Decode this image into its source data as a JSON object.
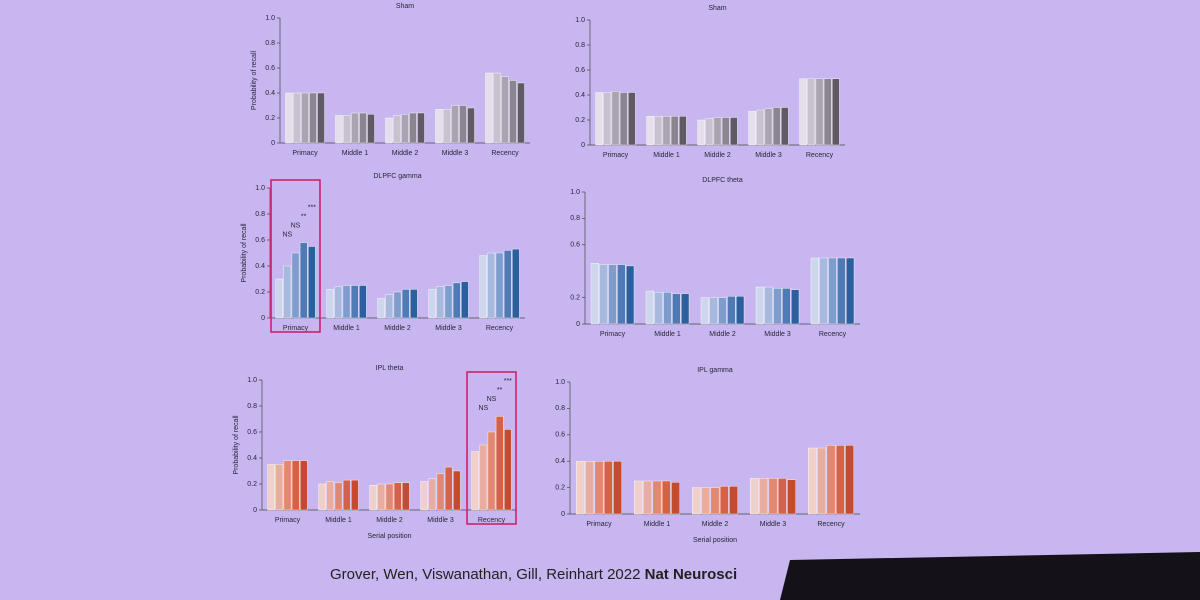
{
  "chart_data": [
    {
      "type": "bar",
      "title": "Sham",
      "ylabel": "Probability of recall",
      "categories": [
        "Primacy",
        "Middle 1",
        "Middle 2",
        "Middle 3",
        "Recency"
      ],
      "series": [
        {
          "color": "#e4dfea",
          "values": [
            0.4,
            0.22,
            0.2,
            0.27,
            0.56
          ]
        },
        {
          "color": "#c8c2ce",
          "values": [
            0.4,
            0.22,
            0.22,
            0.27,
            0.56
          ]
        },
        {
          "color": "#aaa4b1",
          "values": [
            0.4,
            0.24,
            0.23,
            0.3,
            0.53
          ]
        },
        {
          "color": "#8a8591",
          "values": [
            0.4,
            0.24,
            0.24,
            0.3,
            0.5
          ]
        },
        {
          "color": "#5f5a64",
          "values": [
            0.4,
            0.23,
            0.24,
            0.28,
            0.48
          ]
        }
      ],
      "ylim": [
        0,
        1
      ],
      "yticks": [
        0,
        0.2,
        0.4,
        0.6,
        0.8,
        {
          "value": 1,
          "label": "1.0"
        }
      ]
    },
    {
      "type": "bar",
      "title": "Sham",
      "categories": [
        "Primacy",
        "Middle 1",
        "Middle 2",
        "Middle 3",
        "Recency"
      ],
      "series": [
        {
          "color": "#e4dfea",
          "values": [
            0.42,
            0.23,
            0.2,
            0.27,
            0.53
          ]
        },
        {
          "color": "#c8c2ce",
          "values": [
            0.42,
            0.23,
            0.21,
            0.28,
            0.53
          ]
        },
        {
          "color": "#aaa4b1",
          "values": [
            0.43,
            0.23,
            0.22,
            0.29,
            0.53
          ]
        },
        {
          "color": "#8a8591",
          "values": [
            0.42,
            0.23,
            0.22,
            0.3,
            0.53
          ]
        },
        {
          "color": "#5f5a64",
          "values": [
            0.42,
            0.23,
            0.22,
            0.3,
            0.53
          ]
        }
      ],
      "ylim": [
        0,
        1
      ],
      "yticks": [
        0,
        0.2,
        0.4,
        0.6,
        0.8,
        {
          "value": 1,
          "label": "1.0"
        }
      ]
    },
    {
      "type": "bar",
      "title": "DLPFC gamma",
      "ylabel": "Probability of recall",
      "categories": [
        "Primacy",
        "Middle 1",
        "Middle 2",
        "Middle 3",
        "Recency"
      ],
      "series": [
        {
          "color": "#cdd6ec",
          "values": [
            0.3,
            0.22,
            0.15,
            0.22,
            0.48
          ]
        },
        {
          "color": "#a7badd",
          "values": [
            0.4,
            0.24,
            0.18,
            0.24,
            0.5
          ]
        },
        {
          "color": "#7e9dcd",
          "values": [
            0.5,
            0.25,
            0.2,
            0.25,
            0.5
          ]
        },
        {
          "color": "#507ab5",
          "values": [
            0.58,
            0.25,
            0.22,
            0.27,
            0.52
          ]
        },
        {
          "color": "#2b5f9d",
          "values": [
            0.55,
            0.25,
            0.22,
            0.28,
            0.53
          ]
        }
      ],
      "ylim": [
        0,
        1
      ],
      "yticks": [
        0,
        0.2,
        0.4,
        0.6,
        0.8,
        {
          "value": 1,
          "label": "1.0"
        }
      ],
      "highlight_category": 0,
      "annotations": [
        "NS",
        "NS",
        "**",
        "***"
      ]
    },
    {
      "type": "bar",
      "title": "DLPFC theta",
      "categories": [
        "Primacy",
        "Middle 1",
        "Middle 2",
        "Middle 3",
        "Recency"
      ],
      "series": [
        {
          "color": "#cdd6ec",
          "values": [
            0.46,
            0.25,
            0.2,
            0.28,
            0.5
          ]
        },
        {
          "color": "#a7badd",
          "values": [
            0.45,
            0.24,
            0.2,
            0.28,
            0.5
          ]
        },
        {
          "color": "#7e9dcd",
          "values": [
            0.45,
            0.24,
            0.2,
            0.27,
            0.5
          ]
        },
        {
          "color": "#507ab5",
          "values": [
            0.45,
            0.23,
            0.21,
            0.27,
            0.5
          ]
        },
        {
          "color": "#2b5f9d",
          "values": [
            0.44,
            0.23,
            0.21,
            0.26,
            0.5
          ]
        }
      ],
      "ylim": [
        0,
        1
      ],
      "yticks": [
        0,
        0.2,
        0.6,
        0.8,
        {
          "value": 1,
          "label": "1.0"
        }
      ]
    },
    {
      "type": "bar",
      "title": "IPL theta",
      "ylabel": "Probability of recall",
      "xlabel": "Serial position",
      "categories": [
        "Primacy",
        "Middle 1",
        "Middle 2",
        "Middle 3",
        "Recency"
      ],
      "series": [
        {
          "color": "#efd0ca",
          "values": [
            0.35,
            0.2,
            0.19,
            0.22,
            0.45
          ]
        },
        {
          "color": "#e9ad9f",
          "values": [
            0.35,
            0.22,
            0.2,
            0.24,
            0.5
          ]
        },
        {
          "color": "#e28771",
          "values": [
            0.38,
            0.21,
            0.2,
            0.28,
            0.6
          ]
        },
        {
          "color": "#d66147",
          "values": [
            0.38,
            0.23,
            0.21,
            0.33,
            0.72
          ]
        },
        {
          "color": "#c54b30",
          "values": [
            0.38,
            0.23,
            0.21,
            0.3,
            0.62
          ]
        }
      ],
      "ylim": [
        0,
        1
      ],
      "yticks": [
        0,
        0.2,
        0.4,
        0.6,
        0.8,
        {
          "value": 1,
          "label": "1.0"
        }
      ],
      "highlight_category": 4,
      "annotations": [
        "NS",
        "NS",
        "**",
        "***"
      ]
    },
    {
      "type": "bar",
      "title": "IPL gamma",
      "xlabel": "Serial position",
      "categories": [
        "Primacy",
        "Middle 1",
        "Middle 2",
        "Middle 3",
        "Recency"
      ],
      "series": [
        {
          "color": "#efd0ca",
          "values": [
            0.4,
            0.25,
            0.2,
            0.27,
            0.5
          ]
        },
        {
          "color": "#e9ad9f",
          "values": [
            0.4,
            0.25,
            0.2,
            0.27,
            0.5
          ]
        },
        {
          "color": "#e28771",
          "values": [
            0.4,
            0.25,
            0.2,
            0.27,
            0.52
          ]
        },
        {
          "color": "#d66147",
          "values": [
            0.4,
            0.25,
            0.21,
            0.27,
            0.52
          ]
        },
        {
          "color": "#c54b30",
          "values": [
            0.4,
            0.24,
            0.21,
            0.26,
            0.52
          ]
        }
      ],
      "ylim": [
        0,
        1
      ],
      "yticks": [
        0,
        0.2,
        0.4,
        0.6,
        0.8,
        {
          "value": 1,
          "label": "1.0"
        }
      ]
    }
  ],
  "citation": {
    "authors": "Grover, Wen, Viswanathan, Gill, Reinhart 2022",
    "journal": "Nat Neurosci"
  }
}
